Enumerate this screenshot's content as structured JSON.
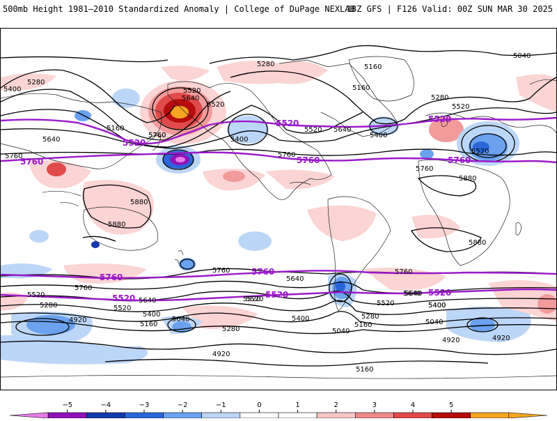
{
  "header": {
    "left": "500mb Height 1981–2010 Standardized Anomaly | College of DuPage NEXLAB",
    "right": "18Z GFS | F126 Valid: 00Z SUN MAR 30 2025"
  },
  "colors": {
    "contour": "#000000",
    "highlight_contour": "#9b19c9",
    "coast": "#222222"
  },
  "contour_labels": [
    "5040",
    "5280",
    "5160",
    "5160",
    "5400",
    "5280",
    "5520",
    "5640",
    "5280",
    "5520",
    "5160",
    "5640",
    "5520",
    "5760",
    "5400",
    "5760",
    "5520",
    "5640",
    "5400",
    "5760",
    "5760",
    "5520",
    "5760",
    "5880",
    "5880",
    "5880",
    "5880",
    "5760",
    "5760",
    "5640",
    "5760",
    "5520",
    "5640",
    "5400",
    "5280",
    "5160",
    "5040",
    "5400",
    "5520",
    "5520",
    "5640",
    "5520",
    "5400",
    "5280",
    "5160",
    "5040",
    "4920",
    "4920",
    "4920",
    "4920",
    "5040",
    "5280",
    "5400",
    "5520",
    "5640",
    "5160"
  ],
  "highlight_labels": [
    "5520",
    "5520",
    "5520",
    "5760",
    "5760",
    "5760",
    "5760",
    "5760",
    "5520",
    "5520",
    "5520"
  ],
  "colorbar": {
    "ticks": [
      "−5",
      "−4",
      "−3",
      "−2",
      "−1",
      "0",
      "1",
      "2",
      "3",
      "4",
      "5"
    ],
    "colors": [
      "#e67be8",
      "#8f14b8",
      "#1339a8",
      "#2b66d9",
      "#6aa2ef",
      "#bcd6f7",
      "#ffffff",
      "#ffffff",
      "#f9c6c6",
      "#ee8a8a",
      "#e04a4a",
      "#b50d0d",
      "#f6a623",
      "#f6a623"
    ]
  }
}
